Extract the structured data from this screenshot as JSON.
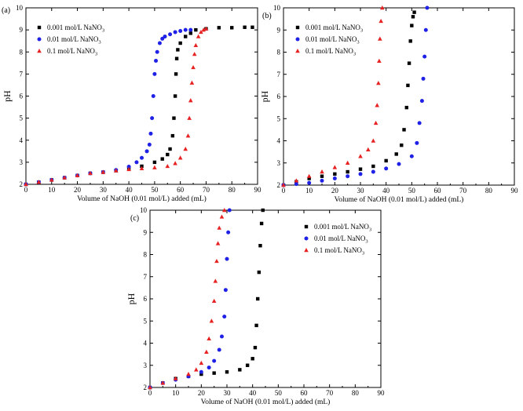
{
  "chart_data": [
    {
      "panel": "(a)",
      "type": "scatter",
      "xlabel": "Volume of NaOH (0.01 mol/L) added (mL)",
      "ylabel": "pH",
      "xlim": [
        0,
        90
      ],
      "ylim": [
        2,
        10
      ],
      "xticks": [
        0,
        10,
        20,
        30,
        40,
        50,
        60,
        70,
        80,
        90
      ],
      "yticks": [
        2,
        3,
        4,
        5,
        6,
        7,
        8,
        9,
        10
      ],
      "legend": [
        "0.001 mol/L NaNO3",
        "0.01 mol/L NaNO3",
        "0.1 mol/L NaNO3"
      ],
      "series": [
        {
          "name": "0.001 mol/L NaNO3",
          "marker": "square",
          "color": "#000000",
          "x": [
            0,
            5,
            10,
            15,
            20,
            25,
            30,
            35,
            40,
            45,
            50,
            53,
            55,
            56,
            57,
            57.5,
            58,
            58.3,
            58.6,
            59,
            60,
            62,
            64,
            66,
            70,
            75,
            80,
            85,
            88
          ],
          "y": [
            2.0,
            2.1,
            2.2,
            2.3,
            2.4,
            2.5,
            2.55,
            2.62,
            2.7,
            2.82,
            3.0,
            3.15,
            3.35,
            3.6,
            4.2,
            5.0,
            6.0,
            7.0,
            7.7,
            8.1,
            8.4,
            8.7,
            8.85,
            9.0,
            9.05,
            9.1,
            9.1,
            9.12,
            9.12
          ]
        },
        {
          "name": "0.01 mol/L NaNO3",
          "marker": "circle",
          "color": "#1f22e6",
          "x": [
            0,
            5,
            10,
            15,
            20,
            25,
            30,
            35,
            40,
            43,
            45,
            47,
            48,
            48.5,
            49,
            49.5,
            50,
            50.5,
            51,
            52,
            53,
            54,
            56,
            58,
            60,
            62,
            64
          ],
          "y": [
            2.0,
            2.1,
            2.2,
            2.3,
            2.4,
            2.5,
            2.55,
            2.65,
            2.8,
            3.0,
            3.2,
            3.5,
            3.8,
            4.3,
            5.0,
            6.0,
            7.0,
            7.6,
            8.0,
            8.4,
            8.6,
            8.7,
            8.8,
            8.9,
            8.95,
            9.0,
            9.0
          ]
        },
        {
          "name": "0.1 mol/L NaNO3",
          "marker": "triangle",
          "color": "#e62222",
          "x": [
            0,
            5,
            10,
            15,
            20,
            25,
            30,
            35,
            40,
            45,
            50,
            55,
            58,
            60,
            62,
            63,
            63.5,
            64,
            64.5,
            65,
            65.5,
            66,
            67,
            68,
            69,
            70
          ],
          "y": [
            2.0,
            2.1,
            2.2,
            2.3,
            2.4,
            2.5,
            2.55,
            2.62,
            2.68,
            2.72,
            2.76,
            2.82,
            2.95,
            3.2,
            3.6,
            4.2,
            5.0,
            5.8,
            6.6,
            7.3,
            7.9,
            8.3,
            8.7,
            8.9,
            9.0,
            9.05
          ]
        }
      ]
    },
    {
      "panel": "(b)",
      "type": "scatter",
      "xlabel": "Volume of NaOH (0.01 mol/L) added (mL)",
      "ylabel": "pH",
      "xlim": [
        0,
        90
      ],
      "ylim": [
        2,
        10
      ],
      "xticks": [
        0,
        10,
        20,
        30,
        40,
        50,
        60,
        70,
        80,
        90
      ],
      "yticks": [
        2,
        3,
        4,
        5,
        6,
        7,
        8,
        9,
        10
      ],
      "legend": [
        "0.001 mol/L NaNO3",
        "0.01 mol/L NaNO3",
        "0.1 mol/L NaNO3"
      ],
      "series": [
        {
          "name": "0.001 mol/L NaNO3",
          "marker": "square",
          "color": "#000000",
          "x": [
            0,
            5,
            10,
            15,
            20,
            25,
            30,
            35,
            40,
            44,
            46,
            47,
            48,
            48.5,
            49,
            49.5,
            50,
            50.5,
            51
          ],
          "y": [
            2.0,
            2.15,
            2.3,
            2.4,
            2.5,
            2.6,
            2.72,
            2.85,
            3.1,
            3.4,
            3.8,
            4.5,
            5.5,
            6.5,
            7.5,
            8.5,
            9.2,
            9.6,
            9.8
          ]
        },
        {
          "name": "0.01 mol/L NaNO3",
          "marker": "circle",
          "color": "#1f22e6",
          "x": [
            0,
            5,
            10,
            15,
            20,
            25,
            30,
            35,
            40,
            45,
            50,
            52,
            53,
            54,
            54.5,
            55,
            55.5,
            56
          ],
          "y": [
            2.0,
            2.05,
            2.1,
            2.2,
            2.3,
            2.4,
            2.5,
            2.6,
            2.75,
            2.95,
            3.3,
            3.9,
            4.8,
            5.8,
            6.8,
            7.8,
            9.0,
            10.0
          ]
        },
        {
          "name": "0.1 mol/L NaNO3",
          "marker": "triangle",
          "color": "#e62222",
          "x": [
            0,
            5,
            10,
            15,
            20,
            25,
            30,
            33,
            35,
            36,
            36.5,
            37,
            37.3,
            37.6,
            38,
            38.5
          ],
          "y": [
            2.0,
            2.2,
            2.4,
            2.6,
            2.8,
            3.0,
            3.3,
            3.6,
            4.0,
            4.8,
            5.6,
            6.6,
            7.6,
            8.6,
            9.4,
            10.0
          ]
        }
      ]
    },
    {
      "panel": "(c)",
      "type": "scatter",
      "xlabel": "Volume of NaOH (0.01 mol/L) added (mL)",
      "ylabel": "pH",
      "xlim": [
        0,
        90
      ],
      "ylim": [
        2,
        10
      ],
      "xticks": [
        0,
        10,
        20,
        30,
        40,
        50,
        60,
        70,
        80,
        90
      ],
      "yticks": [
        2,
        3,
        4,
        5,
        6,
        7,
        8,
        9,
        10
      ],
      "legend": [
        "0.001 mol/L NaNO3",
        "0.01 mol/L NaNO3",
        "0.1 mol/L NaNO3"
      ],
      "series": [
        {
          "name": "0.001 mol/L NaNO3",
          "marker": "square",
          "color": "#000000",
          "x": [
            0,
            5,
            10,
            15,
            20,
            25,
            30,
            35,
            38,
            40,
            41,
            41.5,
            42,
            42.5,
            43,
            43.5,
            44
          ],
          "y": [
            2.0,
            2.2,
            2.4,
            2.5,
            2.6,
            2.65,
            2.7,
            2.8,
            3.0,
            3.3,
            3.8,
            4.8,
            6.0,
            7.2,
            8.4,
            9.4,
            10.0
          ]
        },
        {
          "name": "0.01 mol/L NaNO3",
          "marker": "circle",
          "color": "#1f22e6",
          "x": [
            0,
            5,
            10,
            15,
            20,
            23,
            25,
            27,
            28,
            29,
            29.5,
            30,
            30.5,
            31
          ],
          "y": [
            2.0,
            2.2,
            2.35,
            2.5,
            2.7,
            2.9,
            3.2,
            3.7,
            4.3,
            5.2,
            6.4,
            7.8,
            9.0,
            10.0
          ]
        },
        {
          "name": "0.1 mol/L NaNO3",
          "marker": "triangle",
          "color": "#e62222",
          "x": [
            0,
            5,
            10,
            15,
            18,
            20,
            22,
            23,
            24,
            25,
            25.5,
            26,
            26.5,
            27,
            28,
            29
          ],
          "y": [
            2.0,
            2.2,
            2.4,
            2.6,
            2.8,
            3.1,
            3.6,
            4.2,
            5.0,
            5.9,
            6.8,
            7.7,
            8.5,
            9.2,
            9.7,
            10.0
          ]
        }
      ]
    }
  ]
}
